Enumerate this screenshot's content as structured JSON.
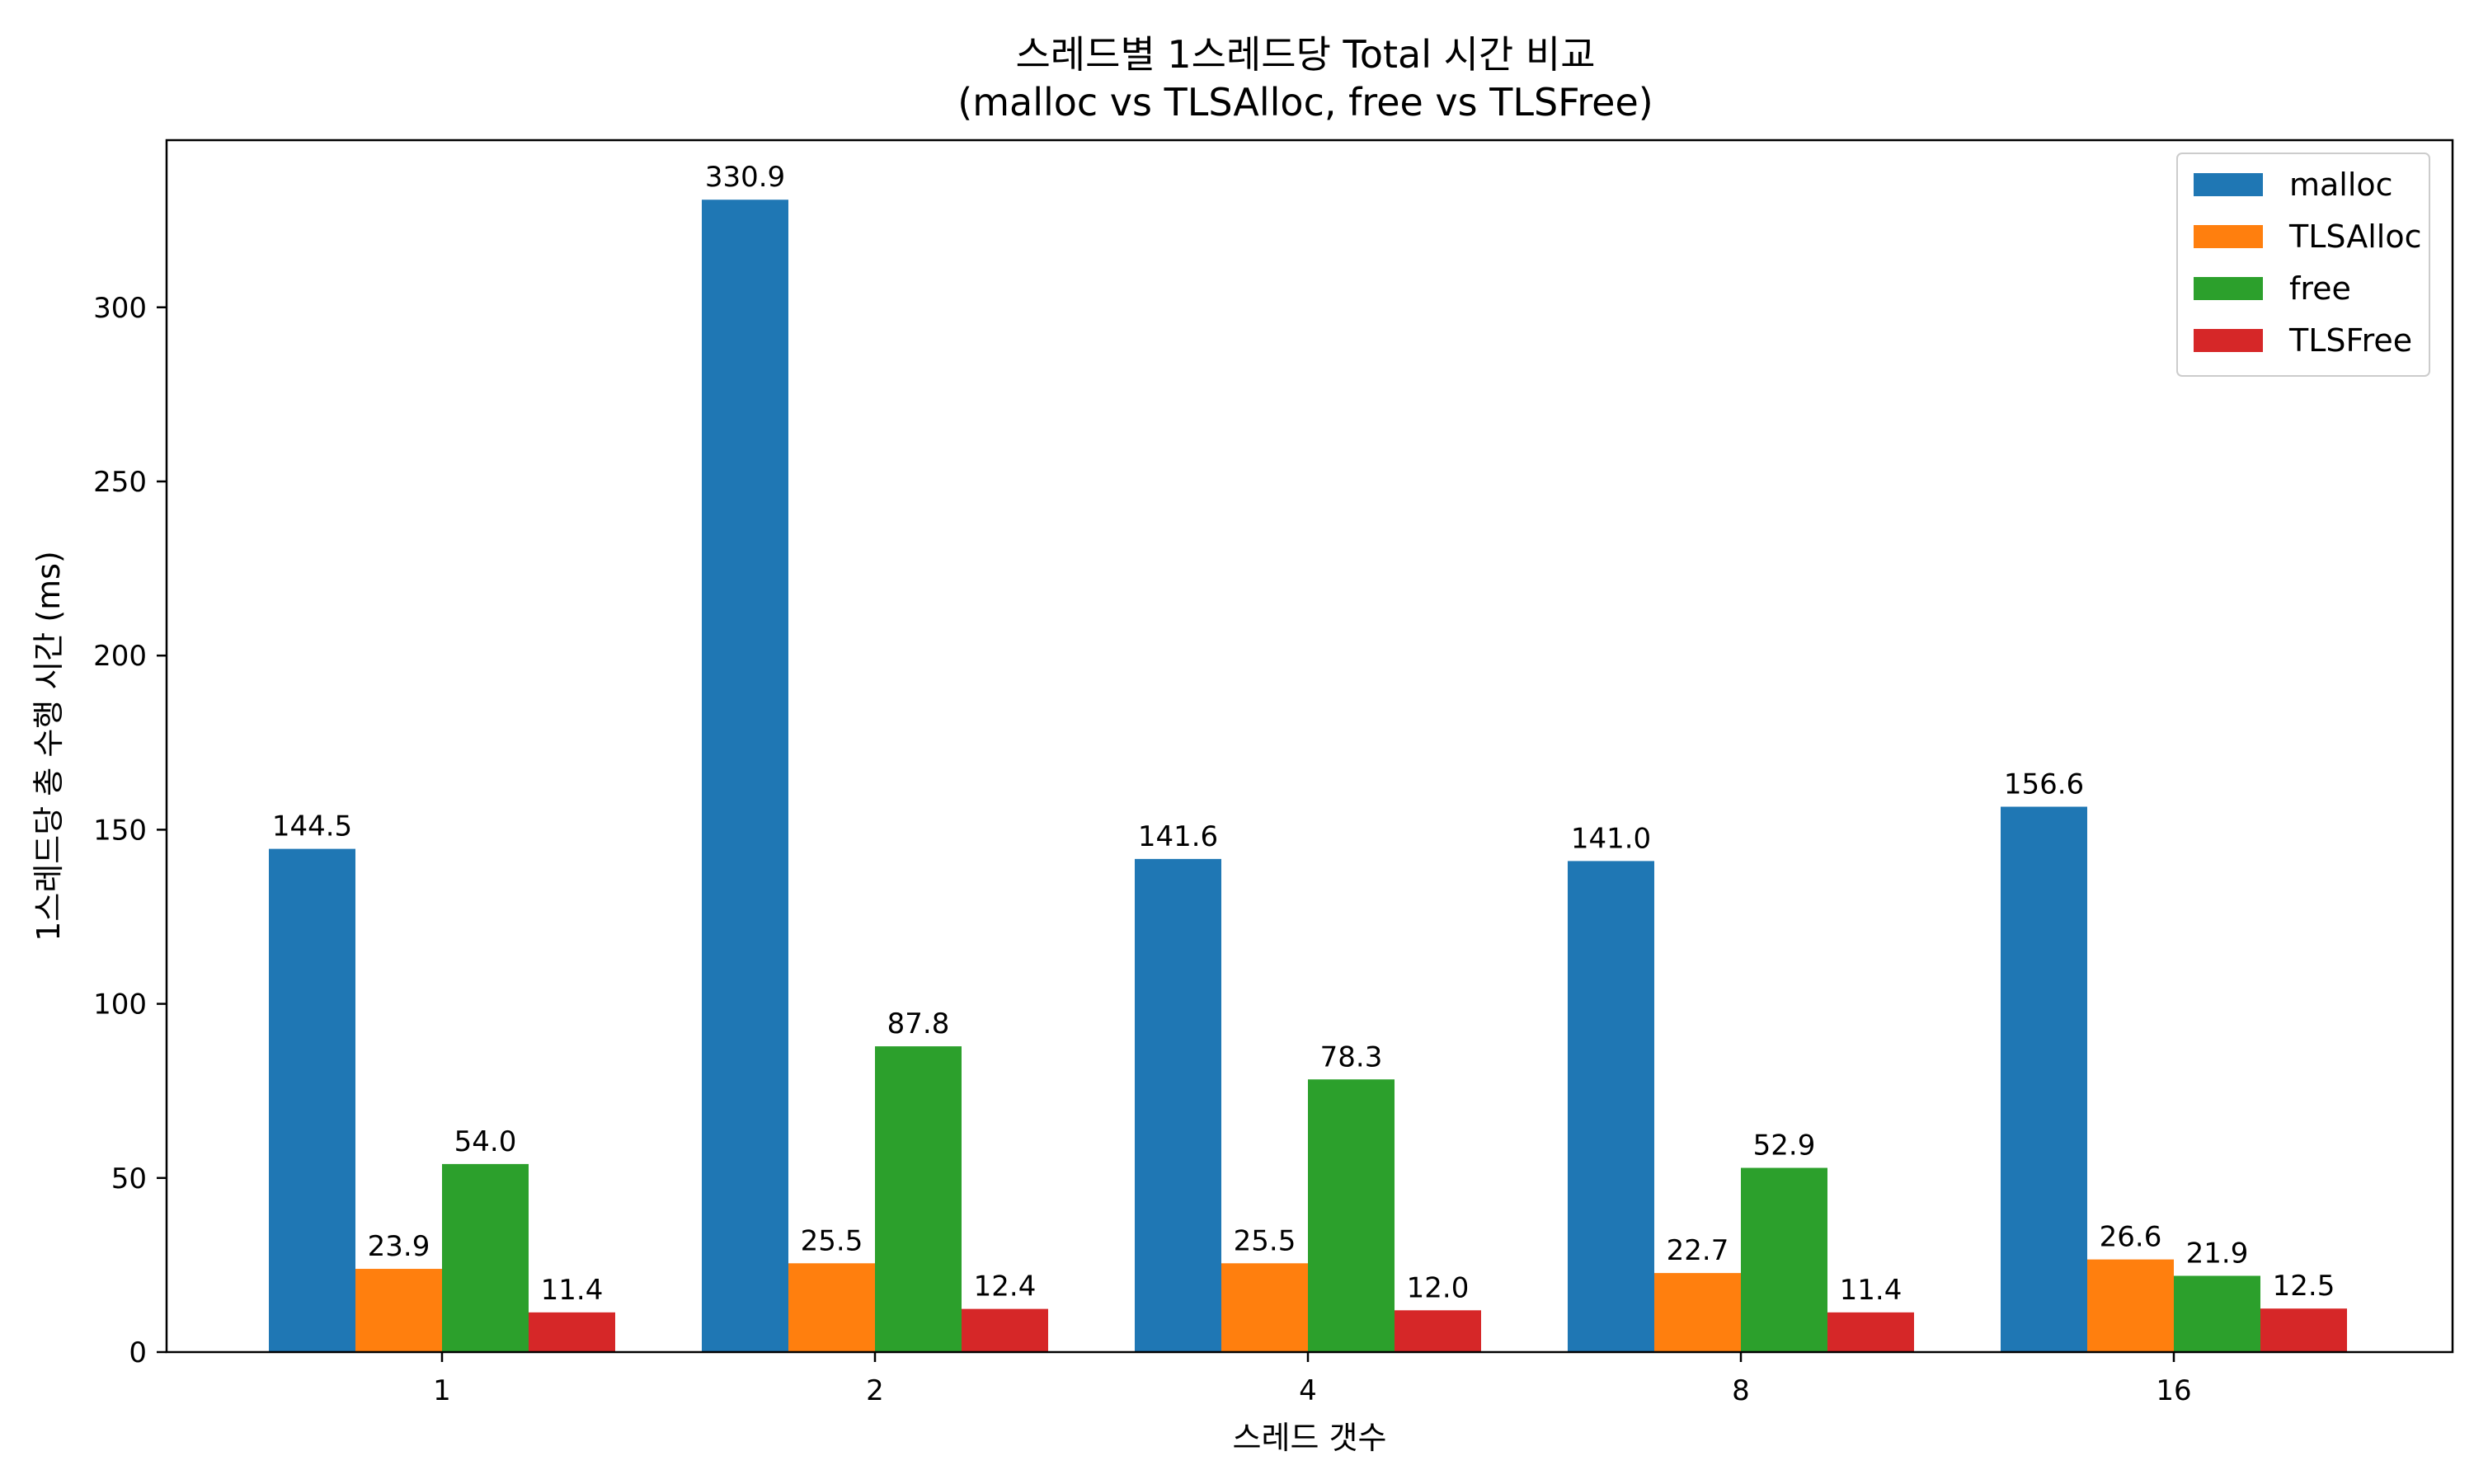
{
  "chart_data": {
    "type": "bar",
    "title": "스레드별 1스레드당 Total 시간 비교",
    "subtitle": "(malloc vs TLSAlloc, free vs TLSFree)",
    "xlabel": "스레드 갯수",
    "ylabel": "1스레드당 총 수행 시간 (ms)",
    "categories": [
      "1",
      "2",
      "4",
      "8",
      "16"
    ],
    "ylim": [
      0,
      348
    ],
    "yticks": [
      0,
      50,
      100,
      150,
      200,
      250,
      300
    ],
    "grid": false,
    "legend_position": "top-right",
    "series": [
      {
        "name": "malloc",
        "color": "#1f77b4",
        "values": [
          144.5,
          330.9,
          141.6,
          141.0,
          156.6
        ]
      },
      {
        "name": "TLSAlloc",
        "color": "#ff7f0e",
        "values": [
          23.9,
          25.5,
          25.5,
          22.7,
          26.6
        ]
      },
      {
        "name": "free",
        "color": "#2ca02c",
        "values": [
          54.0,
          87.8,
          78.3,
          52.9,
          21.9
        ]
      },
      {
        "name": "TLSFree",
        "color": "#d62728",
        "values": [
          11.4,
          12.4,
          12.0,
          11.4,
          12.5
        ]
      }
    ]
  }
}
